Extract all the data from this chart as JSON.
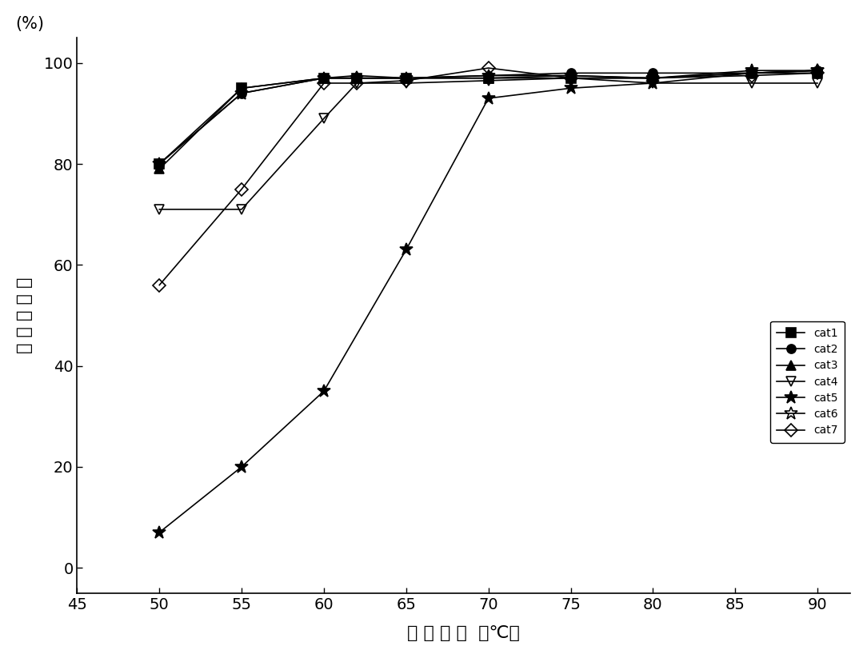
{
  "series": {
    "cat1": {
      "x": [
        50,
        55,
        60,
        62,
        65,
        70,
        75,
        80,
        86,
        90
      ],
      "y": [
        80,
        95,
        97,
        97,
        97,
        97,
        97,
        97,
        98,
        98
      ],
      "marker": "s",
      "fillstyle": "full",
      "label": "cat1"
    },
    "cat2": {
      "x": [
        50,
        55,
        60,
        62,
        65,
        70,
        75,
        80,
        86,
        90
      ],
      "y": [
        80,
        94,
        97,
        97,
        97,
        97.5,
        98,
        98,
        98,
        98.5
      ],
      "marker": "o",
      "fillstyle": "full",
      "label": "cat2"
    },
    "cat3": {
      "x": [
        50,
        55,
        60,
        62,
        65,
        70,
        75,
        80,
        86,
        90
      ],
      "y": [
        79,
        95,
        97,
        97.5,
        97,
        97,
        97.5,
        97,
        98,
        98.5
      ],
      "marker": "^",
      "fillstyle": "full",
      "label": "cat3"
    },
    "cat4": {
      "x": [
        50,
        55,
        60,
        62,
        65,
        70,
        75,
        80,
        86,
        90
      ],
      "y": [
        71,
        71,
        89,
        96,
        96,
        96.5,
        97,
        96,
        96,
        96
      ],
      "marker": "v",
      "fillstyle": "none",
      "label": "cat4"
    },
    "cat5": {
      "x": [
        50,
        55,
        60,
        65,
        70,
        75,
        80,
        86,
        90
      ],
      "y": [
        7,
        20,
        35,
        63,
        93,
        95,
        96,
        98,
        98.5
      ],
      "marker": "*",
      "fillstyle": "full",
      "label": "cat5"
    },
    "cat6": {
      "x": [
        50,
        55,
        60,
        62,
        65,
        70,
        75,
        80,
        86,
        90
      ],
      "y": [
        80,
        94,
        97,
        97,
        97,
        97.5,
        97.5,
        97,
        98.5,
        98.5
      ],
      "marker": "*",
      "fillstyle": "none",
      "label": "cat6"
    },
    "cat7": {
      "x": [
        50,
        55,
        60,
        62,
        65,
        70,
        75,
        80,
        86,
        90
      ],
      "y": [
        56,
        75,
        96,
        96,
        96.5,
        99,
        97,
        97,
        97.5,
        98
      ],
      "marker": "D",
      "fillstyle": "none",
      "label": "cat7"
    }
  },
  "ylabel_chars": [
    "乙",
    " ",
    "厘",
    " ",
    "转",
    " ",
    "化",
    " ",
    "率"
  ],
  "ylabel_pct": "(%)",
  "xlabel_text": "反 应 温 度  （℃）",
  "xlim": [
    45,
    92
  ],
  "ylim": [
    -5,
    105
  ],
  "xticks": [
    45,
    50,
    55,
    60,
    65,
    70,
    75,
    80,
    85,
    90
  ],
  "yticks": [
    0,
    20,
    40,
    60,
    80,
    100
  ],
  "background_color": "#ffffff",
  "line_color": "#000000",
  "markersize": 8,
  "linewidth": 1.2,
  "legend_fontsize": 14,
  "axis_fontsize": 16,
  "tick_fontsize": 14
}
